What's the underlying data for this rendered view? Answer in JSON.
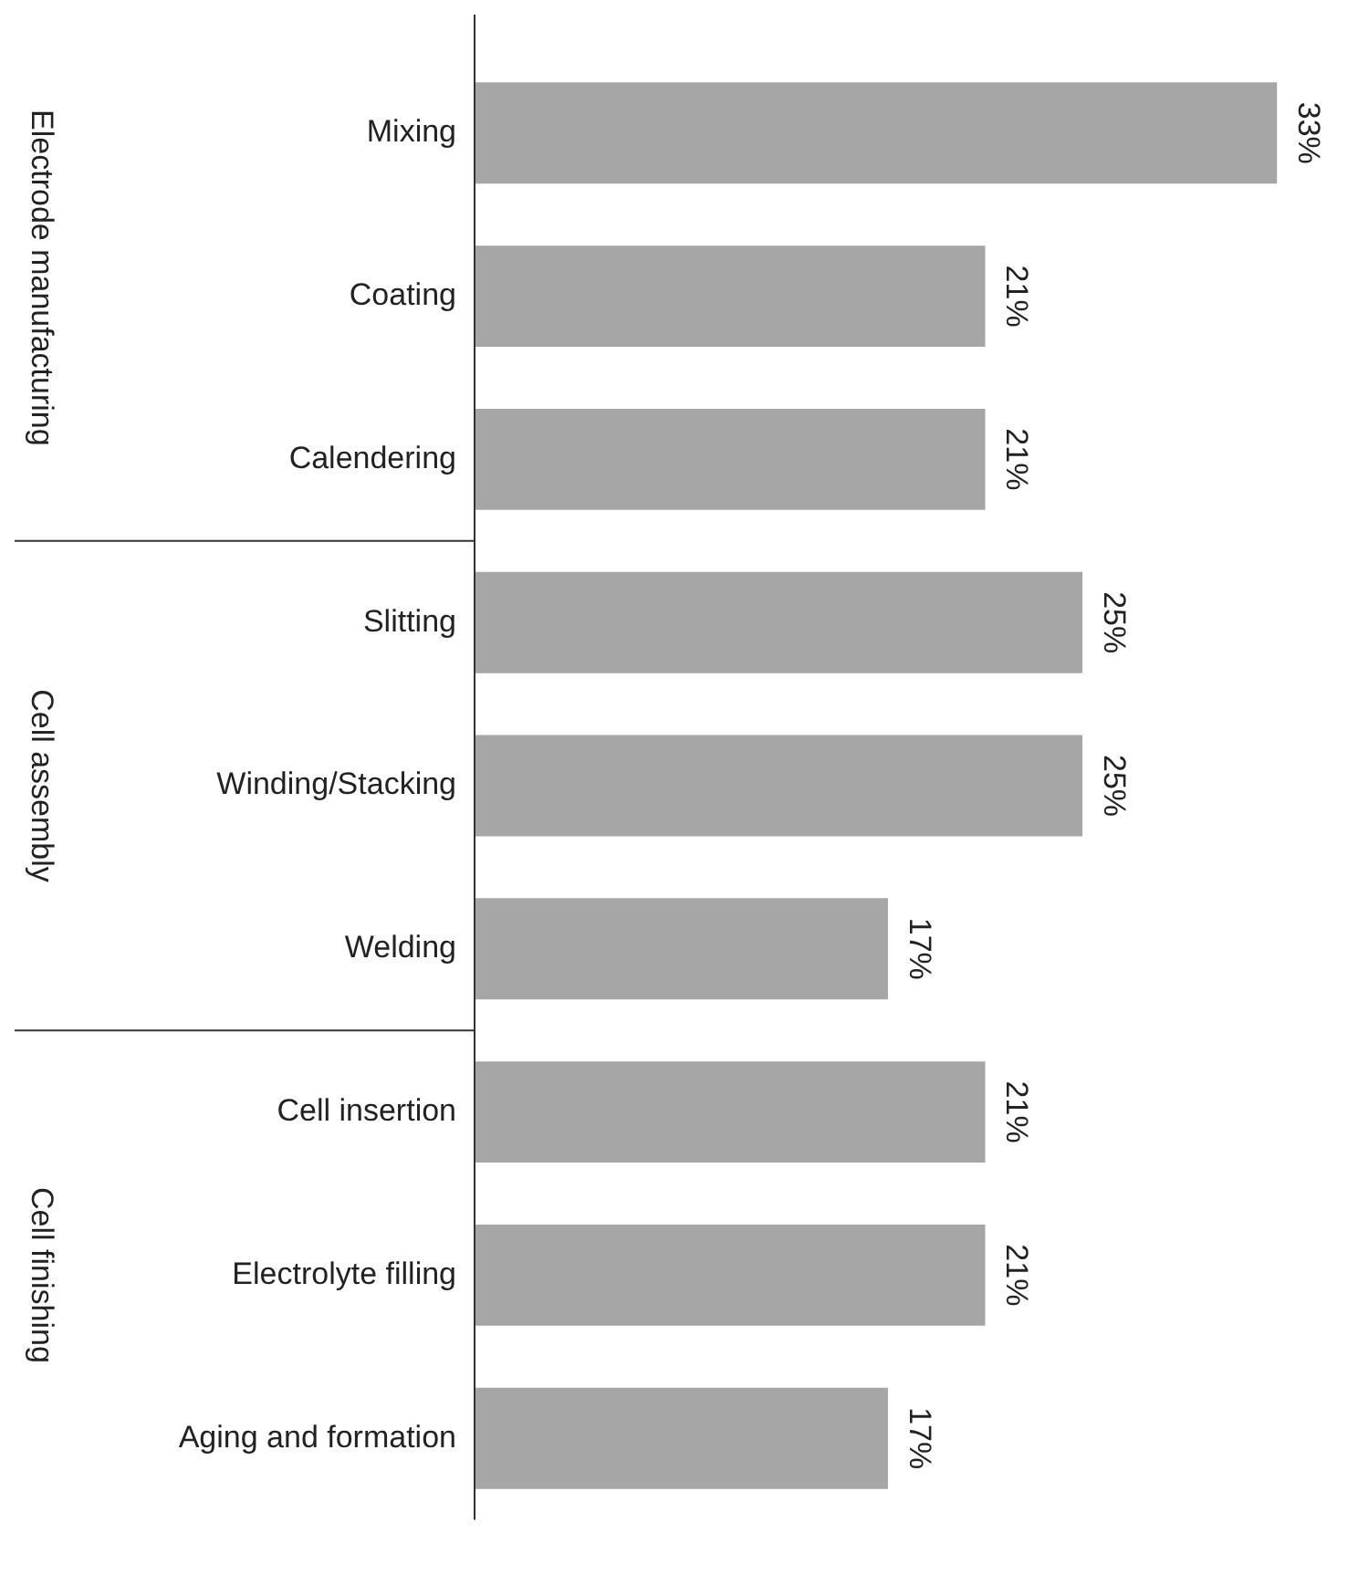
{
  "chart_data": {
    "type": "bar",
    "orientation": "horizontal",
    "categories": [
      "Mixing",
      "Coating",
      "Calendering",
      "Slitting",
      "Winding/Stacking",
      "Welding",
      "Cell insertion",
      "Electrolyte filling",
      "Aging and formation"
    ],
    "values": [
      33,
      21,
      21,
      25,
      25,
      17,
      21,
      21,
      17
    ],
    "value_labels": [
      "33%",
      "21%",
      "21%",
      "25%",
      "25%",
      "17%",
      "21%",
      "21%",
      "17%"
    ],
    "color": "#a6a6a6",
    "annotations": [
      "Electrode manufacturing",
      "Cell assembly",
      "Cell finishing"
    ],
    "grid": false,
    "legend": false
  }
}
